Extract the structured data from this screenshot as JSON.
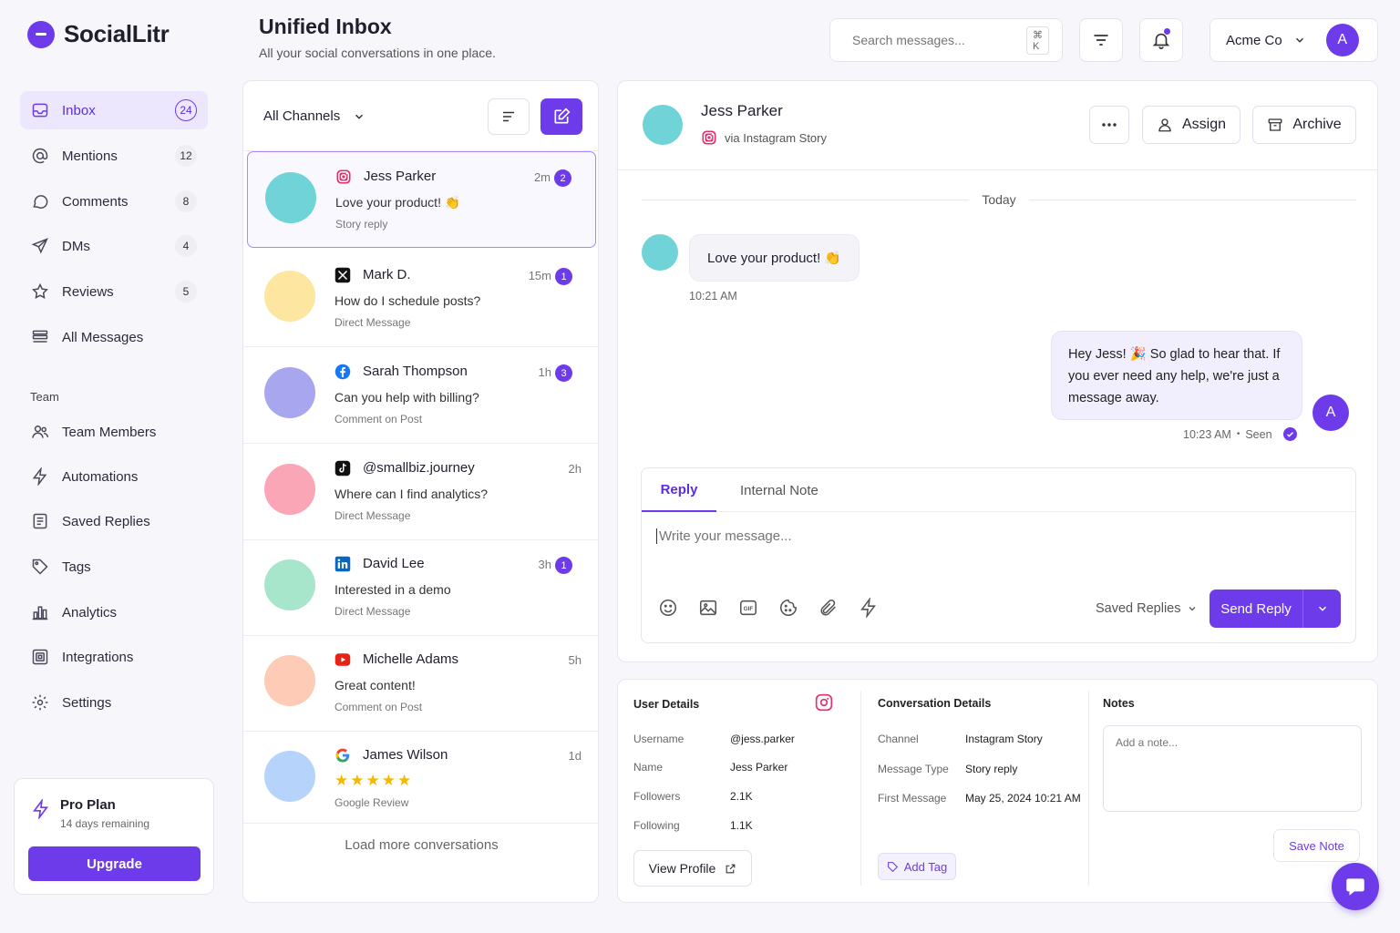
{
  "app": {
    "name": "SocialLitr"
  },
  "sidebar": {
    "items": [
      {
        "label": "Inbox",
        "count": "24",
        "icon": "inbox-icon"
      },
      {
        "label": "Mentions",
        "count": "12",
        "icon": "at-icon"
      },
      {
        "label": "Comments",
        "count": "8",
        "icon": "comment-icon"
      },
      {
        "label": "DMs",
        "count": "4",
        "icon": "send-icon"
      },
      {
        "label": "Reviews",
        "count": "5",
        "icon": "star-icon"
      },
      {
        "label": "All Messages",
        "count": "",
        "icon": "list-icon"
      }
    ],
    "team_label": "Team",
    "team_items": [
      {
        "label": "Team Members",
        "icon": "users-icon"
      },
      {
        "label": "Automations",
        "icon": "bolt-icon"
      },
      {
        "label": "Saved Replies",
        "icon": "saved-replies-icon"
      },
      {
        "label": "Tags",
        "icon": "tag-icon"
      },
      {
        "label": "Analytics",
        "icon": "bar-chart-icon"
      },
      {
        "label": "Integrations",
        "icon": "integrations-icon"
      },
      {
        "label": "Settings",
        "icon": "gear-icon"
      }
    ],
    "plan": {
      "title": "Pro Plan",
      "subtitle": "14 days remaining",
      "upgrade_label": "Upgrade"
    }
  },
  "header": {
    "title": "Unified Inbox",
    "subtitle": "All your social conversations in one place.",
    "search_placeholder": "Search messages...",
    "search_shortcut": "⌘  K",
    "account_name": "Acme Co",
    "avatar_letter": "A"
  },
  "list": {
    "filter_label": "All Channels",
    "conversations": [
      {
        "name": "Jess Parker",
        "channel": "instagram",
        "time": "2m",
        "unread": "2",
        "message": "Love your product! 👏",
        "type": "Story reply",
        "avatar_color": "#6fd3d8"
      },
      {
        "name": "Mark D.",
        "channel": "x",
        "time": "15m",
        "unread": "1",
        "message": "How do I schedule posts?",
        "type": "Direct Message",
        "avatar_color": "#fde7a0"
      },
      {
        "name": "Sarah Thompson",
        "channel": "facebook",
        "time": "1h",
        "unread": "3",
        "message": "Can you help with billing?",
        "type": "Comment on Post",
        "avatar_color": "#a9a6f0"
      },
      {
        "name": "@smallbiz.journey",
        "channel": "tiktok",
        "time": "2h",
        "unread": "",
        "message": "Where can I find analytics?",
        "type": "Direct Message",
        "avatar_color": "#fba6b6"
      },
      {
        "name": "David Lee",
        "channel": "linkedin",
        "time": "3h",
        "unread": "1",
        "message": "Interested in a demo",
        "type": "Direct Message",
        "avatar_color": "#a8e6cc"
      },
      {
        "name": "Michelle Adams",
        "channel": "youtube",
        "time": "5h",
        "unread": "",
        "message": "Great content!",
        "type": "Comment on Post",
        "avatar_color": "#fdcbb6"
      },
      {
        "name": "James Wilson",
        "channel": "google",
        "time": "1d",
        "unread": "",
        "message": "★★★★★",
        "type": "Google Review",
        "avatar_color": "#b5d3fb",
        "rating": 5
      }
    ],
    "load_more": "Load more conversations"
  },
  "chat": {
    "contact_name": "Jess Parker",
    "via": "via Instagram Story",
    "assign_label": "Assign",
    "archive_label": "Archive",
    "divider": "Today",
    "incoming": {
      "text": "Love your product! 👏",
      "time": "10:21 AM"
    },
    "outgoing": {
      "text": "Hey Jess! 🎉 So glad to hear that. If you ever need any help, we're just a message away.",
      "time": "10:23 AM",
      "status": "Seen",
      "avatar_letter": "A"
    },
    "tabs": [
      "Reply",
      "Internal Note"
    ],
    "input_placeholder": "Write your message...",
    "saved_replies_label": "Saved Replies",
    "send_label": "Send Reply"
  },
  "details": {
    "user": {
      "title": "User Details",
      "fields": [
        {
          "k": "Username",
          "v": "@jess.parker"
        },
        {
          "k": "Name",
          "v": "Jess Parker"
        },
        {
          "k": "Followers",
          "v": "2.1K"
        },
        {
          "k": "Following",
          "v": "1.1K"
        }
      ],
      "view_profile_label": "View Profile"
    },
    "conversation": {
      "title": "Conversation Details",
      "fields": [
        {
          "k": "Channel",
          "v": "Instagram Story"
        },
        {
          "k": "Message Type",
          "v": "Story reply"
        },
        {
          "k": "First Message",
          "v": "May 25, 2024 10:21 AM"
        }
      ],
      "add_tag_label": "Add Tag"
    },
    "notes": {
      "title": "Notes",
      "placeholder": "Add a note...",
      "save_label": "Save Note"
    }
  },
  "colors": {
    "accent": "#6d3bea",
    "accent_light": "#ece7fc"
  }
}
